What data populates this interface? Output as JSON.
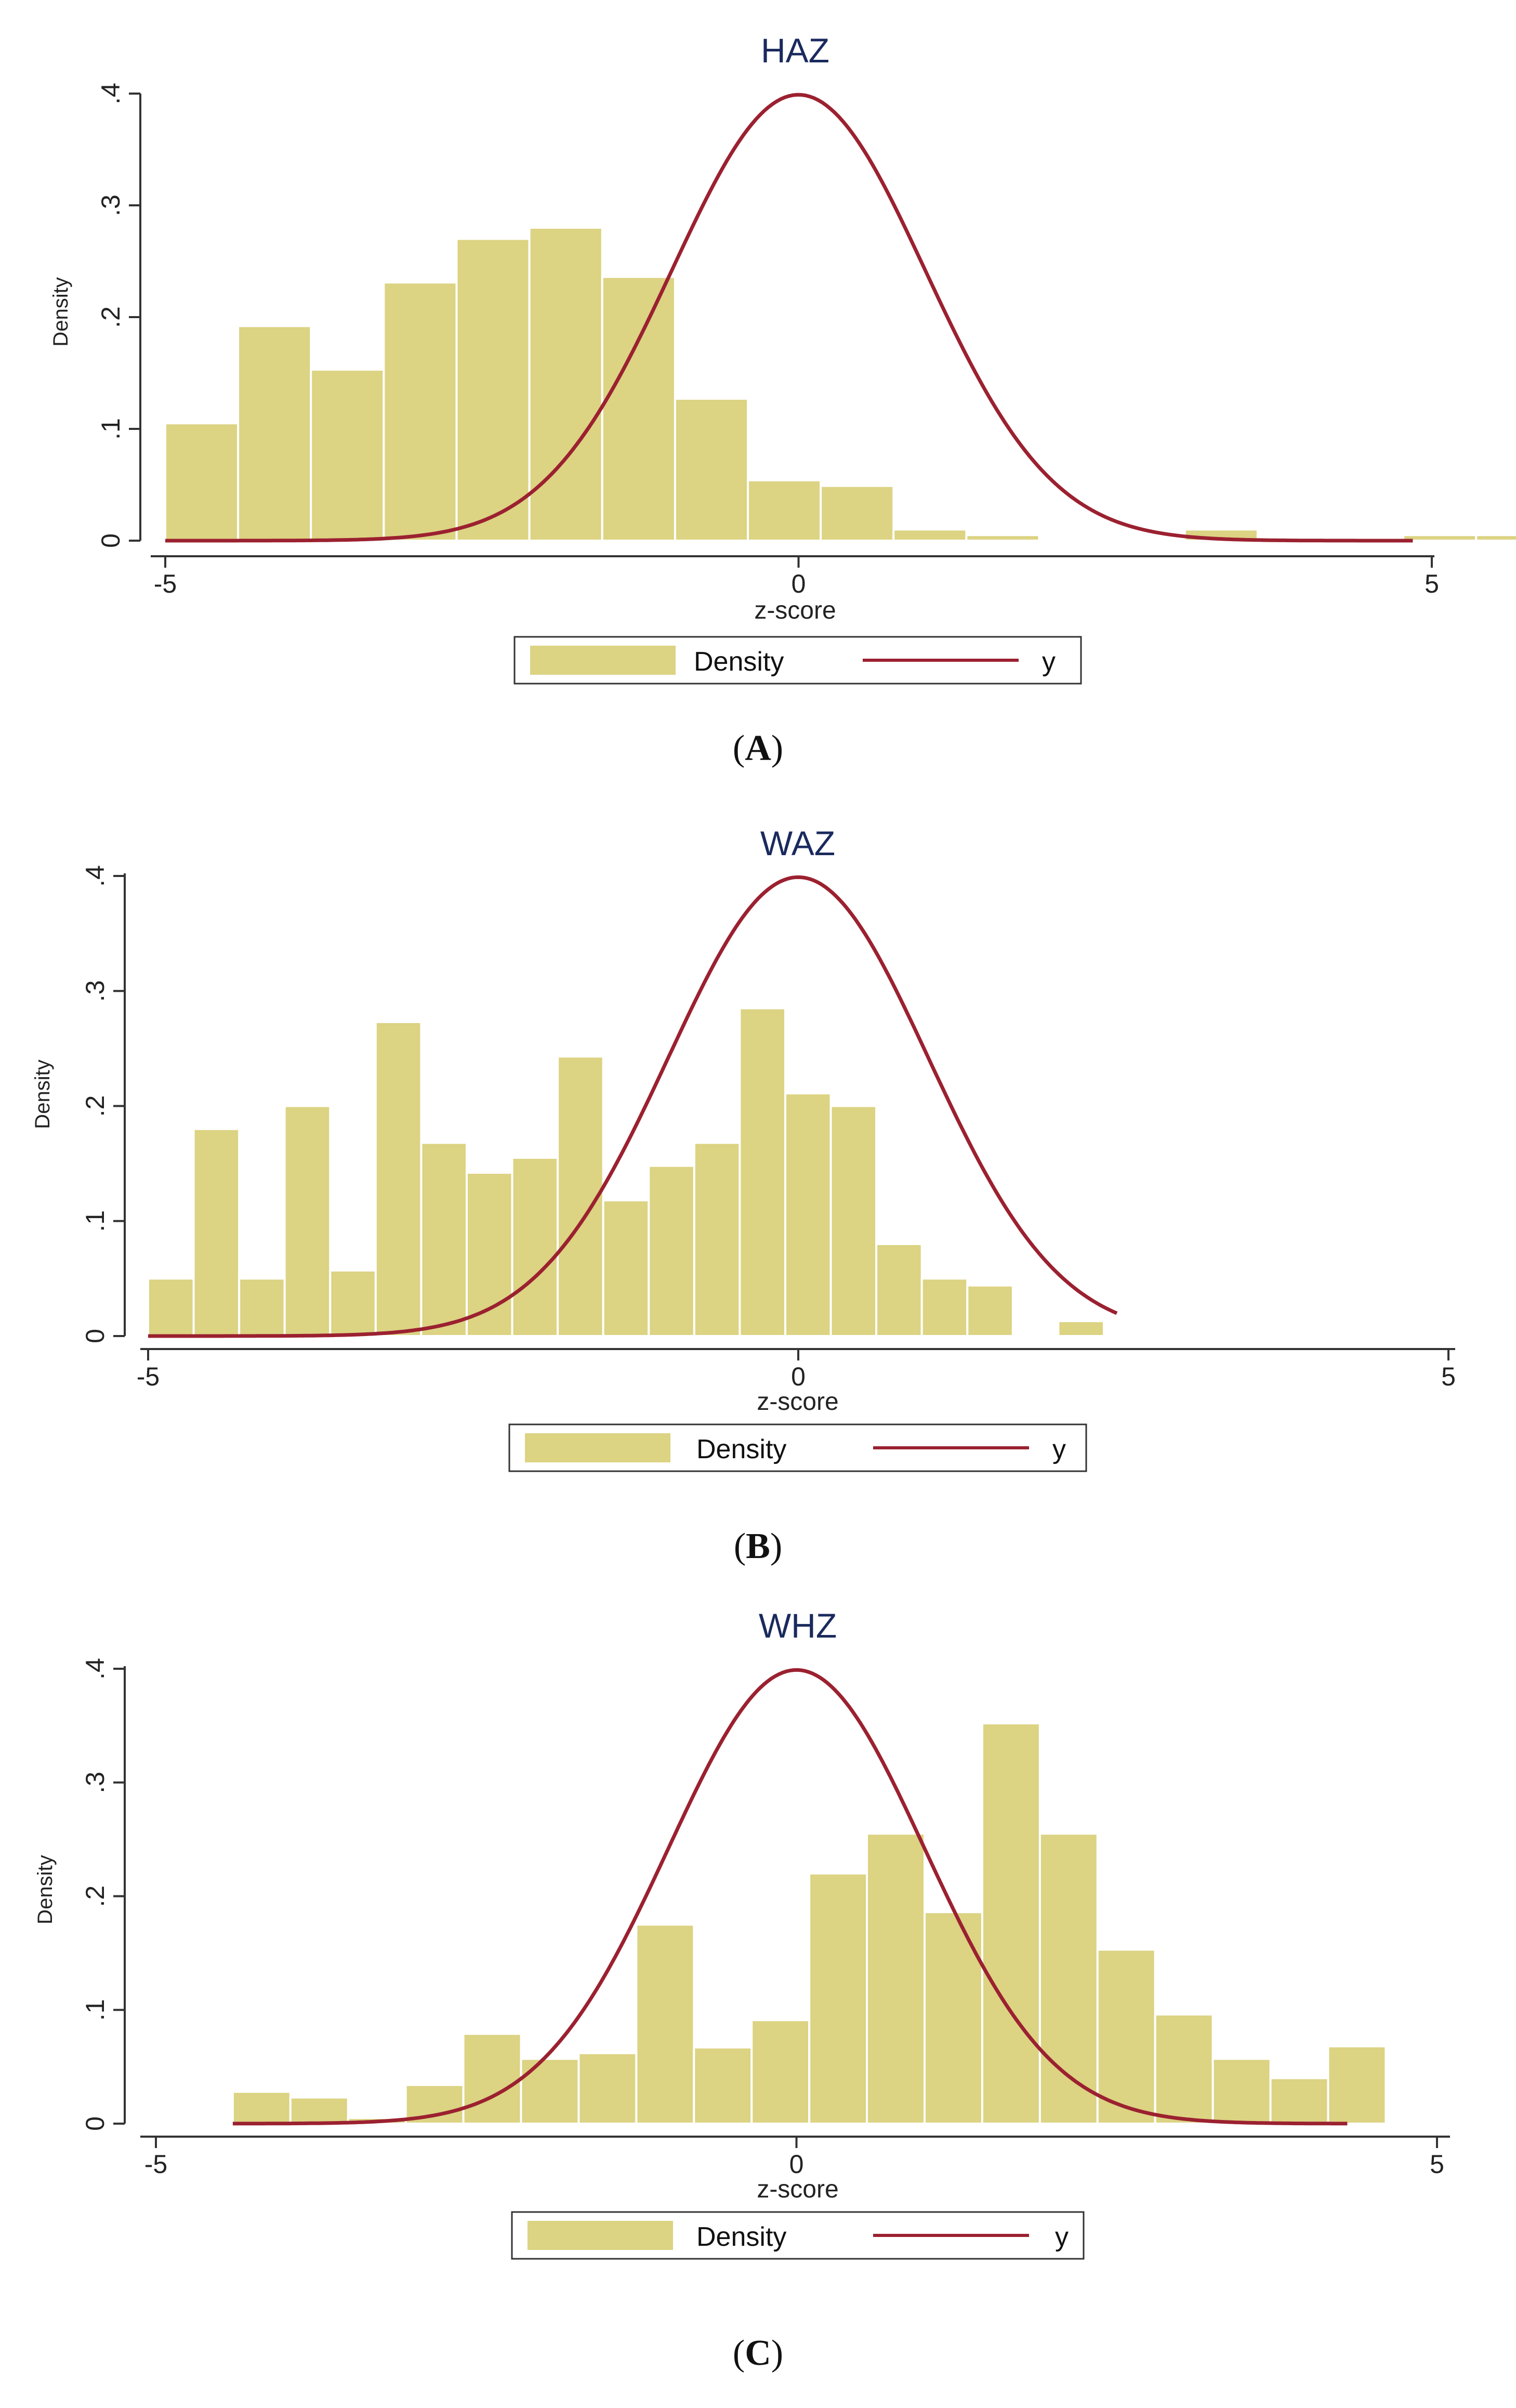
{
  "chart_data": [
    {
      "type": "bar",
      "title": "HAZ",
      "panel_label": "A",
      "xlabel": "z-score",
      "ylabel": "Density",
      "xlim": [
        -5,
        5
      ],
      "ylim": [
        0,
        0.4
      ],
      "xticks": [
        -5,
        0,
        5
      ],
      "yticks": [
        0,
        0.1,
        0.2,
        0.3,
        0.4
      ],
      "ytick_labels": [
        "0",
        ".1",
        ".2",
        ".3",
        ".4"
      ],
      "legend": [
        "Density",
        "y"
      ],
      "grid": false,
      "series": [
        {
          "name": "Density",
          "type": "histogram",
          "bin_start": -5,
          "bin_width": 0.575,
          "values": [
            0.105,
            0.192,
            0.153,
            0.231,
            0.27,
            0.28,
            0.236,
            0.127,
            0.054,
            0.049,
            0.01,
            0.005,
            0,
            0,
            0.01,
            0,
            0,
            0.005,
            0.005
          ]
        },
        {
          "name": "y",
          "type": "line",
          "function": "standard normal density",
          "x_range": [
            -5,
            4.85
          ]
        }
      ]
    },
    {
      "type": "bar",
      "title": "WAZ",
      "panel_label": "B",
      "xlabel": "z-score",
      "ylabel": "Density",
      "xlim": [
        -5,
        5
      ],
      "ylim": [
        0,
        0.4
      ],
      "xticks": [
        -5,
        0,
        5
      ],
      "yticks": [
        0,
        0.1,
        0.2,
        0.3,
        0.4
      ],
      "ytick_labels": [
        "0",
        ".1",
        ".2",
        ".3",
        ".4"
      ],
      "legend": [
        "Density",
        "y"
      ],
      "grid": false,
      "series": [
        {
          "name": "Density",
          "type": "histogram",
          "bin_start": -5,
          "bin_width": 0.35,
          "values": [
            0.05,
            0.18,
            0.05,
            0.2,
            0.057,
            0.273,
            0.168,
            0.142,
            0.155,
            0.243,
            0.118,
            0.148,
            0.168,
            0.285,
            0.211,
            0.2,
            0.08,
            0.05,
            0.044,
            0,
            0.013
          ]
        },
        {
          "name": "y",
          "type": "line",
          "function": "standard normal density",
          "x_range": [
            -5,
            2.45
          ]
        }
      ]
    },
    {
      "type": "bar",
      "title": "WHZ",
      "panel_label": "C",
      "xlabel": "z-score",
      "ylabel": "Density",
      "xlim": [
        -5,
        5
      ],
      "ylim": [
        0,
        0.4
      ],
      "xticks": [
        -5,
        0,
        5
      ],
      "yticks": [
        0,
        0.1,
        0.2,
        0.3,
        0.4
      ],
      "ytick_labels": [
        "0",
        ".1",
        ".2",
        ".3",
        ".4"
      ],
      "legend": [
        "Density",
        "y"
      ],
      "grid": false,
      "series": [
        {
          "name": "Density",
          "type": "histogram",
          "bin_start": -4.4,
          "bin_width": 0.45,
          "values": [
            0.028,
            0.023,
            0.005,
            0.034,
            0.079,
            0.057,
            0.062,
            0.175,
            0.067,
            0.091,
            0.22,
            0.255,
            0.186,
            0.352,
            0.255,
            0.153,
            0.096,
            0.057,
            0.04,
            0.068
          ]
        },
        {
          "name": "y",
          "type": "line",
          "function": "standard normal density",
          "x_range": [
            -4.4,
            4.3
          ]
        }
      ]
    }
  ]
}
